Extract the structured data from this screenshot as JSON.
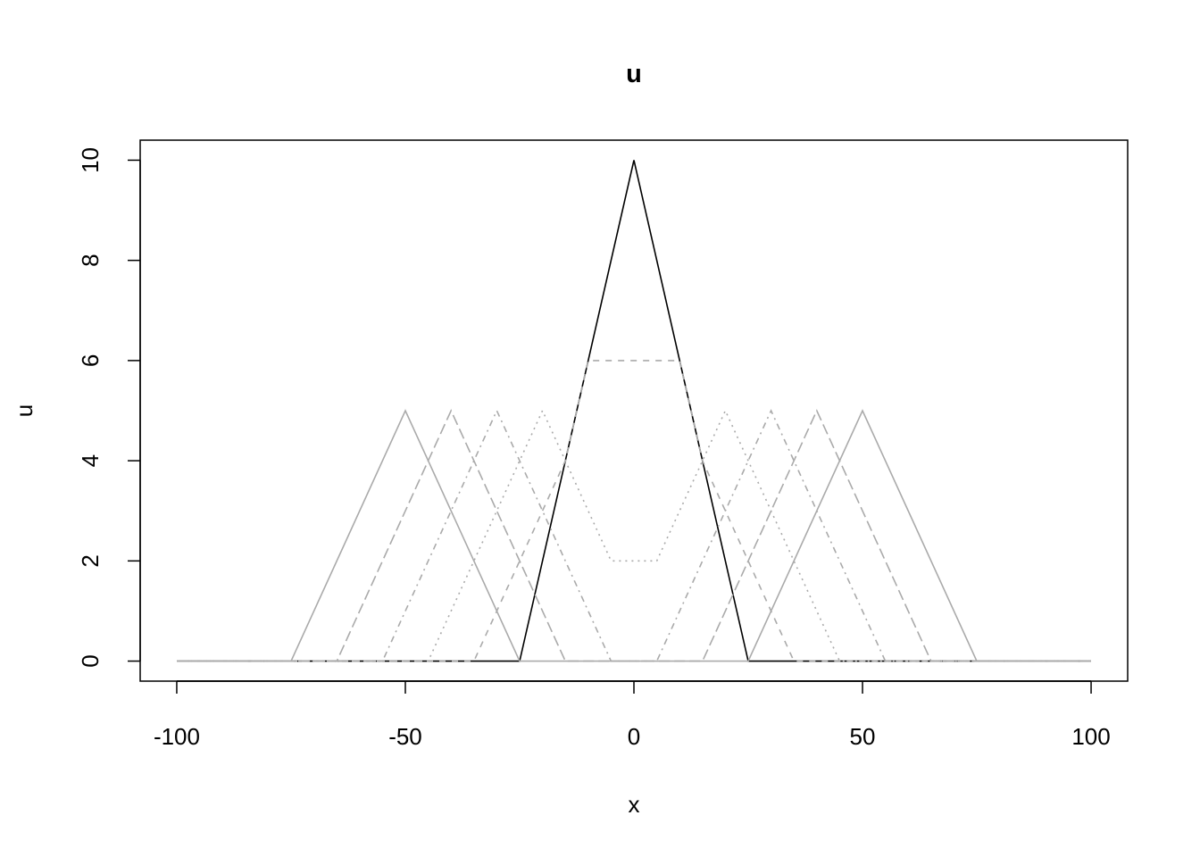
{
  "chart_data": {
    "type": "line",
    "title": "u",
    "xlabel": "x",
    "ylabel": "u",
    "xlim": [
      -108,
      108
    ],
    "ylim": [
      -0.4,
      10.4
    ],
    "x_ticks": [
      -100,
      -50,
      0,
      50,
      100
    ],
    "x_tick_labels": [
      "-100",
      "-50",
      "0",
      "50",
      "100"
    ],
    "y_ticks": [
      0,
      2,
      4,
      6,
      8,
      10
    ],
    "y_tick_labels": [
      "0",
      "2",
      "4",
      "6",
      "8",
      "10"
    ],
    "grid": false,
    "legend": "none",
    "series": [
      {
        "color": "#000000",
        "line_style": "solid",
        "x": [
          -100,
          -25,
          0,
          25,
          100
        ],
        "y": [
          0,
          0,
          10,
          0,
          0
        ]
      },
      {
        "color": "#aaaaaa",
        "line_style": "dashed",
        "x": [
          -100,
          -35,
          -15,
          -10,
          10,
          15,
          35,
          100
        ],
        "y": [
          0,
          0,
          4,
          6,
          6,
          4,
          0,
          0
        ]
      },
      {
        "color": "#aaaaaa",
        "line_style": "dotted",
        "x": [
          -100,
          -45,
          -20,
          -5,
          5,
          20,
          45,
          100
        ],
        "y": [
          0,
          0,
          5,
          2,
          2,
          5,
          0,
          0
        ]
      },
      {
        "color": "#aaaaaa",
        "line_style": "dotdash",
        "x": [
          -100,
          -55,
          -30,
          -5,
          5,
          30,
          55,
          100
        ],
        "y": [
          0,
          0,
          5,
          0,
          0,
          5,
          0,
          0
        ]
      },
      {
        "color": "#aaaaaa",
        "line_style": "longdash",
        "x": [
          -100,
          -65,
          -40,
          -15,
          15,
          40,
          65,
          100
        ],
        "y": [
          0,
          0,
          5,
          0,
          0,
          5,
          0,
          0
        ]
      },
      {
        "color": "#aaaaaa",
        "line_style": "solid",
        "x": [
          -100,
          -75,
          -50,
          -25,
          25,
          50,
          75,
          100
        ],
        "y": [
          0,
          0,
          5,
          0,
          0,
          5,
          0,
          0
        ]
      }
    ]
  }
}
